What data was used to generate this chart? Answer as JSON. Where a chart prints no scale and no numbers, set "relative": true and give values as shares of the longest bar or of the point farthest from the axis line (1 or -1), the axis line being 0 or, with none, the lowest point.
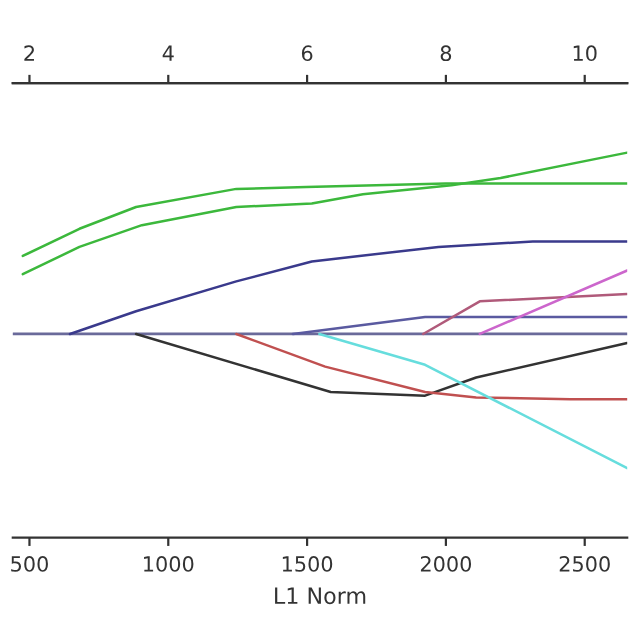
{
  "chart_data": {
    "type": "line",
    "relative": true,
    "xlabel": "L1 Norm",
    "xlim": [
      440,
      2653
    ],
    "xticks": [
      500,
      1000,
      1500,
      2000,
      2500
    ],
    "x2lim": [
      1.76,
      10.612
    ],
    "x2ticks": [
      2,
      4,
      6,
      8,
      10
    ],
    "tick_labels": "x",
    "grid": false,
    "legend": false,
    "marker": "none",
    "line_style": "solid",
    "ref_lines": [
      {
        "axis": "y",
        "value": 0,
        "color": "#6a6a9a"
      }
    ],
    "series": [
      {
        "color": "#3cb83c",
        "x": [
          476,
          680,
          884,
          1245,
          1497,
          2000,
          2653
        ],
        "values": [
          0.43,
          0.58,
          0.7,
          0.8,
          0.81,
          0.83,
          0.83
        ]
      },
      {
        "color": "#3cb83c",
        "x": [
          476,
          680,
          905,
          1245,
          1517,
          1701,
          2020,
          2197,
          2653
        ],
        "values": [
          0.33,
          0.48,
          0.6,
          0.7,
          0.72,
          0.77,
          0.82,
          0.86,
          1.0
        ]
      },
      {
        "color": "#3a3a8c",
        "x": [
          646,
          884,
          1245,
          1517,
          1973,
          2313,
          2653
        ],
        "values": [
          0,
          0.125,
          0.29,
          0.4,
          0.48,
          0.51,
          0.51
        ]
      },
      {
        "color": "#5a5aa0",
        "x": [
          1449,
          1925,
          2653
        ],
        "values": [
          0,
          0.094,
          0.094
        ]
      },
      {
        "color": "#b05a7a",
        "x": [
          1918,
          2122,
          2653
        ],
        "values": [
          0,
          0.18,
          0.22
        ]
      },
      {
        "color": "#cc66cc",
        "x": [
          2122,
          2653
        ],
        "values": [
          0,
          0.35
        ]
      },
      {
        "color": "#333333",
        "x": [
          884,
          1585,
          1925,
          2109,
          2653
        ],
        "values": [
          0,
          -0.32,
          -0.34,
          -0.24,
          -0.05
        ]
      },
      {
        "color": "#c05050",
        "x": [
          1245,
          1565,
          1925,
          2109,
          2449,
          2653
        ],
        "values": [
          0,
          -0.18,
          -0.32,
          -0.35,
          -0.36,
          -0.36
        ]
      },
      {
        "color": "#66dddd",
        "x": [
          1544,
          1925,
          2653
        ],
        "values": [
          0,
          -0.17,
          -0.74
        ]
      }
    ]
  }
}
